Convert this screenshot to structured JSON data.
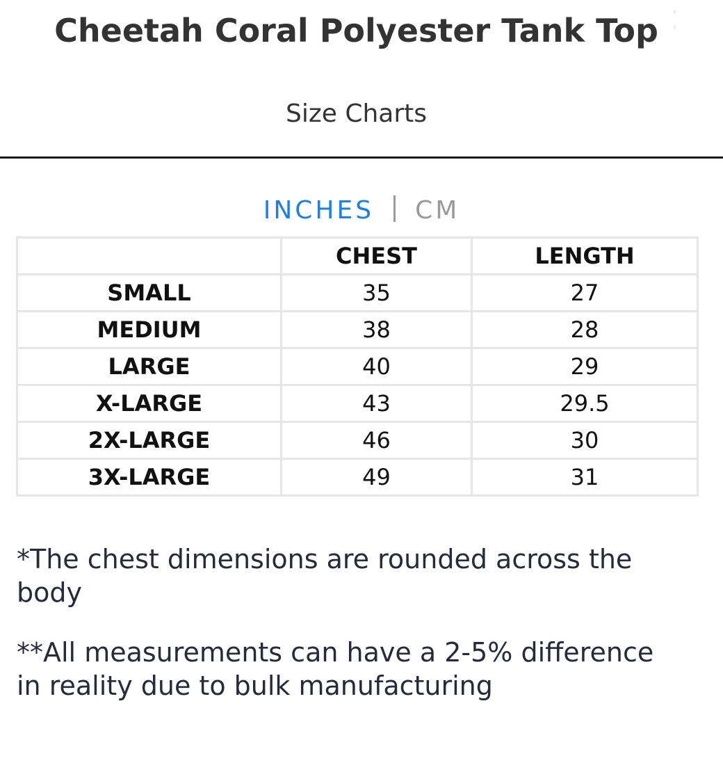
{
  "header": {
    "title": "Cheetah Coral Polyester Tank Top",
    "subtitle": "Size Charts"
  },
  "unit_toggle": {
    "inches_label": "INCHES",
    "cm_label": "CM",
    "active": "INCHES",
    "active_color": "#1e7fe0",
    "inactive_color": "#9a9a9a"
  },
  "size_table": {
    "columns": [
      "",
      "CHEST",
      "LENGTH"
    ],
    "rows": [
      {
        "size": "SMALL",
        "chest": "35",
        "length": "27"
      },
      {
        "size": "MEDIUM",
        "chest": "38",
        "length": "28"
      },
      {
        "size": "LARGE",
        "chest": "40",
        "length": "29"
      },
      {
        "size": "X-LARGE",
        "chest": "43",
        "length": "29.5"
      },
      {
        "size": "2X-LARGE",
        "chest": "46",
        "length": "30"
      },
      {
        "size": "3X-LARGE",
        "chest": "49",
        "length": "31"
      }
    ]
  },
  "notes": {
    "chest_note": "*The chest dimensions are rounded across the body",
    "measurement_note": "**All measurements can have a 2-5% difference in reality due to bulk manufacturing"
  }
}
